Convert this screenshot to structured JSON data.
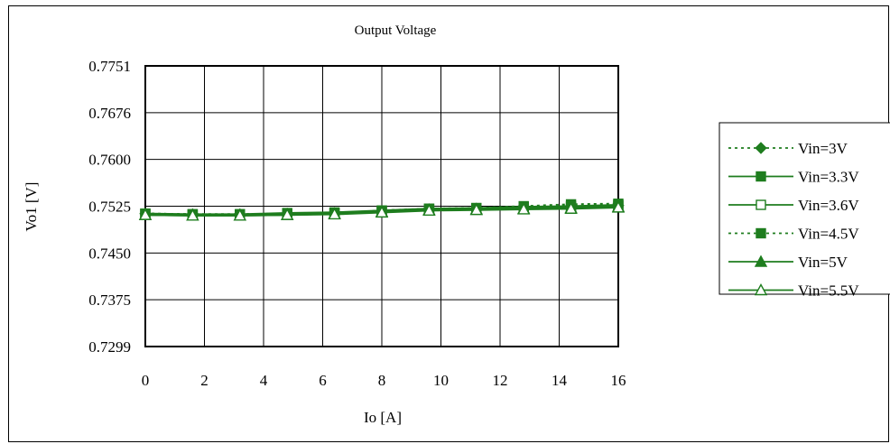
{
  "chart_data": {
    "type": "line",
    "title": "Output Voltage",
    "xlabel": "Io [A]",
    "ylabel": "Vo1 [V]",
    "x": [
      0,
      1.6,
      3.2,
      4.8,
      6.4,
      8.0,
      9.6,
      11.2,
      12.8,
      14.4,
      16.0
    ],
    "xlim": [
      0,
      16
    ],
    "ylim": [
      0.7299,
      0.7751
    ],
    "x_ticks": [
      "0",
      "2",
      "4",
      "6",
      "8",
      "10",
      "12",
      "14",
      "16"
    ],
    "y_ticks": [
      "0.7751",
      "0.7676",
      "0.7600",
      "0.7525",
      "0.7450",
      "0.7375",
      "0.7299"
    ],
    "grid": true,
    "legend_position": "right",
    "series": [
      {
        "name": "Vin=3V",
        "values": [
          0.7513,
          0.7512,
          0.7512,
          0.7513,
          0.7514,
          0.7517,
          0.752,
          0.7521,
          0.7522,
          0.7524,
          0.7526
        ],
        "marker": "diamond",
        "dash": true,
        "color": "#1e7d1e"
      },
      {
        "name": "Vin=3.3V",
        "values": [
          0.7513,
          0.7512,
          0.7512,
          0.7514,
          0.7515,
          0.7518,
          0.7521,
          0.7522,
          0.7524,
          0.7525,
          0.7527
        ],
        "marker": "square",
        "dash": false,
        "color": "#1e7d1e"
      },
      {
        "name": "Vin=3.6V",
        "values": [
          0.7512,
          0.7511,
          0.7511,
          0.7513,
          0.7514,
          0.7517,
          0.752,
          0.7521,
          0.7523,
          0.7524,
          0.7526
        ],
        "marker": "square-open",
        "dash": false,
        "color": "#1e7d1e"
      },
      {
        "name": "Vin=4.5V",
        "values": [
          0.7513,
          0.7512,
          0.7512,
          0.7512,
          0.7514,
          0.7518,
          0.7521,
          0.7522,
          0.7525,
          0.7528,
          0.7529
        ],
        "marker": "square",
        "dash": true,
        "color": "#1e7d1e"
      },
      {
        "name": "Vin=5V",
        "values": [
          0.7511,
          0.751,
          0.751,
          0.7511,
          0.7513,
          0.7516,
          0.7519,
          0.752,
          0.7521,
          0.7522,
          0.7524
        ],
        "marker": "triangle",
        "dash": false,
        "color": "#1e7d1e"
      },
      {
        "name": "Vin=5.5V",
        "values": [
          0.7511,
          0.751,
          0.751,
          0.7511,
          0.7512,
          0.7515,
          0.7518,
          0.7519,
          0.752,
          0.7521,
          0.7523
        ],
        "marker": "triangle-open",
        "dash": false,
        "color": "#1e7d1e"
      }
    ]
  }
}
